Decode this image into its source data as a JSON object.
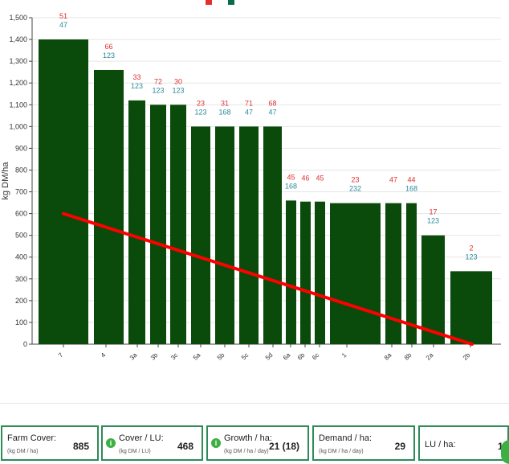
{
  "chart_data": {
    "type": "bar",
    "ylabel": "kg DM/ha",
    "xlabel": "",
    "ylim": [
      0,
      1500
    ],
    "yticks": [
      0,
      100,
      200,
      300,
      400,
      500,
      600,
      700,
      800,
      900,
      1000,
      1100,
      1200,
      1300,
      1400,
      1500
    ],
    "bars": [
      {
        "x": "7",
        "value": 1400,
        "label_red": "51",
        "label_teal": "47"
      },
      {
        "x": "4",
        "value": 1260,
        "label_red": "66",
        "label_teal": "123"
      },
      {
        "x": "3a",
        "value": 1120,
        "label_red": "33",
        "label_teal": "123"
      },
      {
        "x": "3b",
        "value": 1100,
        "label_red": "72",
        "label_teal": "123"
      },
      {
        "x": "3c",
        "value": 1100,
        "label_red": "30",
        "label_teal": "123"
      },
      {
        "x": "5a",
        "value": 1000,
        "label_red": "23",
        "label_teal": "123"
      },
      {
        "x": "5b",
        "value": 1000,
        "label_red": "31",
        "label_teal": "168"
      },
      {
        "x": "5c",
        "value": 1000,
        "label_red": "71",
        "label_teal": "47"
      },
      {
        "x": "5d",
        "value": 1000,
        "label_red": "68",
        "label_teal": "47"
      },
      {
        "x": "6a",
        "value": 660,
        "label_red": "45",
        "label_teal": "168"
      },
      {
        "x": "6b",
        "value": 655,
        "label_red": "46",
        "label_teal": ""
      },
      {
        "x": "6c",
        "value": 655,
        "label_red": "45",
        "label_teal": ""
      },
      {
        "x": "1",
        "value": 648,
        "label_red": "23",
        "label_teal": "232"
      },
      {
        "x": "8a",
        "value": 648,
        "label_red": "47",
        "label_teal": ""
      },
      {
        "x": "8b",
        "value": 648,
        "label_red": "44",
        "label_teal": "168"
      },
      {
        "x": "2a",
        "value": 500,
        "label_red": "17",
        "label_teal": "123"
      },
      {
        "x": "2b",
        "value": 335,
        "label_red": "2",
        "label_teal": "123"
      }
    ],
    "trend_line": {
      "start_value": 600,
      "end_value": 0
    },
    "colors": {
      "bar": "#0a4a0a",
      "trend": "#ff0000",
      "label_red": "#e03030",
      "label_teal": "#2a8a9a"
    },
    "grid": true
  },
  "stats": {
    "farm_cover": {
      "label": "Farm Cover:",
      "unit": "(kg DM / ha)",
      "value": "885"
    },
    "cover_lu": {
      "label": "Cover / LU:",
      "unit": "(kg DM / LU)",
      "value": "468"
    },
    "growth": {
      "label": "Growth / ha:",
      "unit": "(kg DM / ha / day)",
      "value": "21 (18)"
    },
    "demand": {
      "label": "Demand / ha:",
      "unit": "(kg DM / ha / day)",
      "value": "29"
    },
    "lu_ha": {
      "label": "LU / ha:",
      "value": "1."
    }
  }
}
